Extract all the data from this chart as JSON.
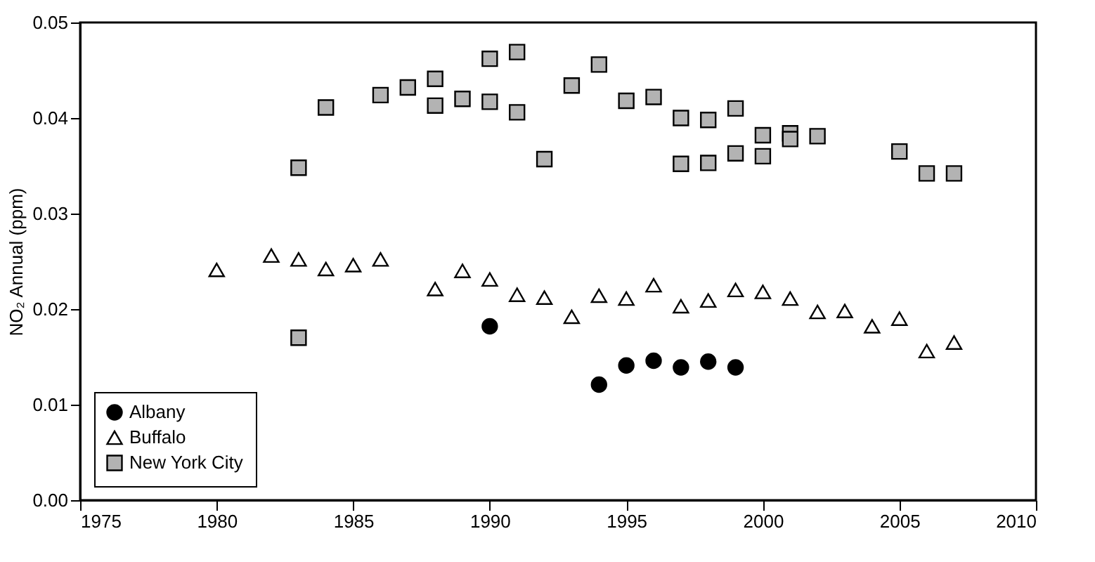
{
  "chart_data": {
    "type": "scatter",
    "ylabel": "NO₂ Annual (ppm)",
    "xlim": [
      1975,
      2010
    ],
    "xticks": [
      1975,
      1980,
      1985,
      1990,
      1995,
      2000,
      2005,
      2010
    ],
    "ylim": [
      0,
      0.05
    ],
    "yticks": [
      {
        "value": 0,
        "label": "0.00"
      },
      {
        "value": 0.01,
        "label": "0.01"
      },
      {
        "value": 0.02,
        "label": "0.02"
      },
      {
        "value": 0.03,
        "label": "0.03"
      },
      {
        "value": 0.04,
        "label": "0.04"
      },
      {
        "value": 0.05,
        "label": "0.05"
      }
    ],
    "grid": false,
    "legend": "bottom left",
    "series": [
      {
        "name": "Albany",
        "color": "#000000",
        "marker": "circle",
        "x": [
          1990,
          1994,
          1995,
          1996,
          1997,
          1998,
          1999
        ],
        "values": [
          0.0182,
          0.0121,
          0.0141,
          0.0146,
          0.0139,
          0.0145,
          0.0139
        ]
      },
      {
        "name": "Buffalo",
        "color": "#ffffff",
        "marker": "triangle",
        "x": [
          1980,
          1982,
          1983,
          1984,
          1985,
          1986,
          1988,
          1989,
          1990,
          1991,
          1992,
          1993,
          1994,
          1995,
          1996,
          1997,
          1998,
          1999,
          2000,
          2001,
          2002,
          2003,
          2004,
          2005,
          2006,
          2007
        ],
        "values": [
          0.0241,
          0.0256,
          0.0252,
          0.0242,
          0.0246,
          0.0252,
          0.0221,
          0.024,
          0.0231,
          0.0215,
          0.0212,
          0.0192,
          0.0214,
          0.0211,
          0.0225,
          0.0203,
          0.0209,
          0.022,
          0.0218,
          0.0211,
          0.0197,
          0.0198,
          0.0182,
          0.019,
          0.0156,
          0.0165
        ]
      },
      {
        "name": "New York City",
        "color": "#b3b3b3",
        "marker": "square",
        "x": [
          1983,
          1983,
          1984,
          1986,
          1987,
          1988,
          1988,
          1989,
          1990,
          1990,
          1991,
          1991,
          1992,
          1993,
          1994,
          1995,
          1996,
          1997,
          1997,
          1998,
          1998,
          1999,
          1999,
          2000,
          2000,
          2001,
          2001,
          2002,
          2005,
          2006,
          2007
        ],
        "values": [
          0.0348,
          0.017,
          0.0411,
          0.0424,
          0.0432,
          0.0441,
          0.0413,
          0.042,
          0.0462,
          0.0417,
          0.0469,
          0.0406,
          0.0357,
          0.0434,
          0.0456,
          0.0418,
          0.0422,
          0.04,
          0.0352,
          0.0398,
          0.0353,
          0.041,
          0.0363,
          0.0382,
          0.036,
          0.0384,
          0.0378,
          0.0381,
          0.0365,
          0.0342,
          0.0342
        ]
      }
    ]
  }
}
